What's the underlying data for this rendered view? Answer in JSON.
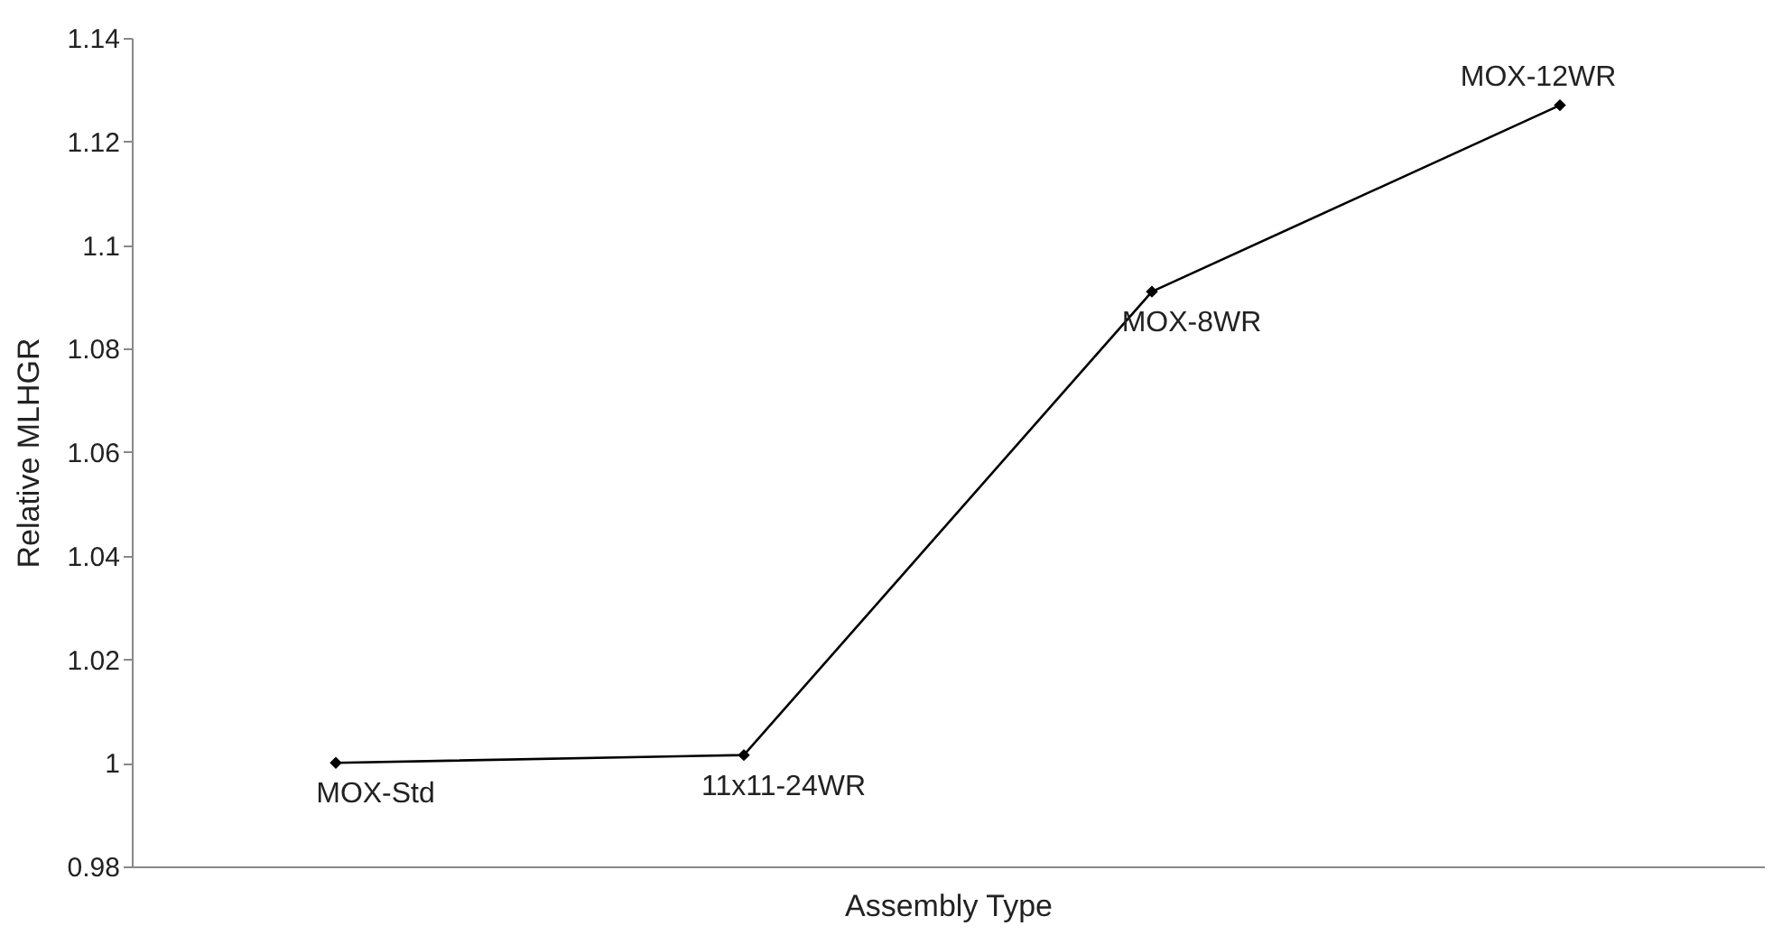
{
  "chart_data": {
    "type": "line",
    "xlabel": "Assembly Type",
    "ylabel": "Relative MLHGR",
    "categories": [
      "MOX-Std",
      "11x11-24WR",
      "MOX-8WR",
      "MOX-12WR"
    ],
    "series": [
      {
        "color": "#000000",
        "values": [
          1.0,
          1.0015,
          1.091,
          1.127
        ]
      }
    ],
    "ylim": [
      0.98,
      1.14
    ],
    "yticks": [
      0.98,
      {
        "value": 1,
        "label": "1"
      },
      1.02,
      1.04,
      1.06,
      1.08,
      {
        "value": 1.1,
        "label": "1.1"
      },
      1.12,
      1.14
    ],
    "grid": false,
    "legend": false,
    "marker": "diamond",
    "line_style": "solid",
    "tick_labels": "y"
  }
}
